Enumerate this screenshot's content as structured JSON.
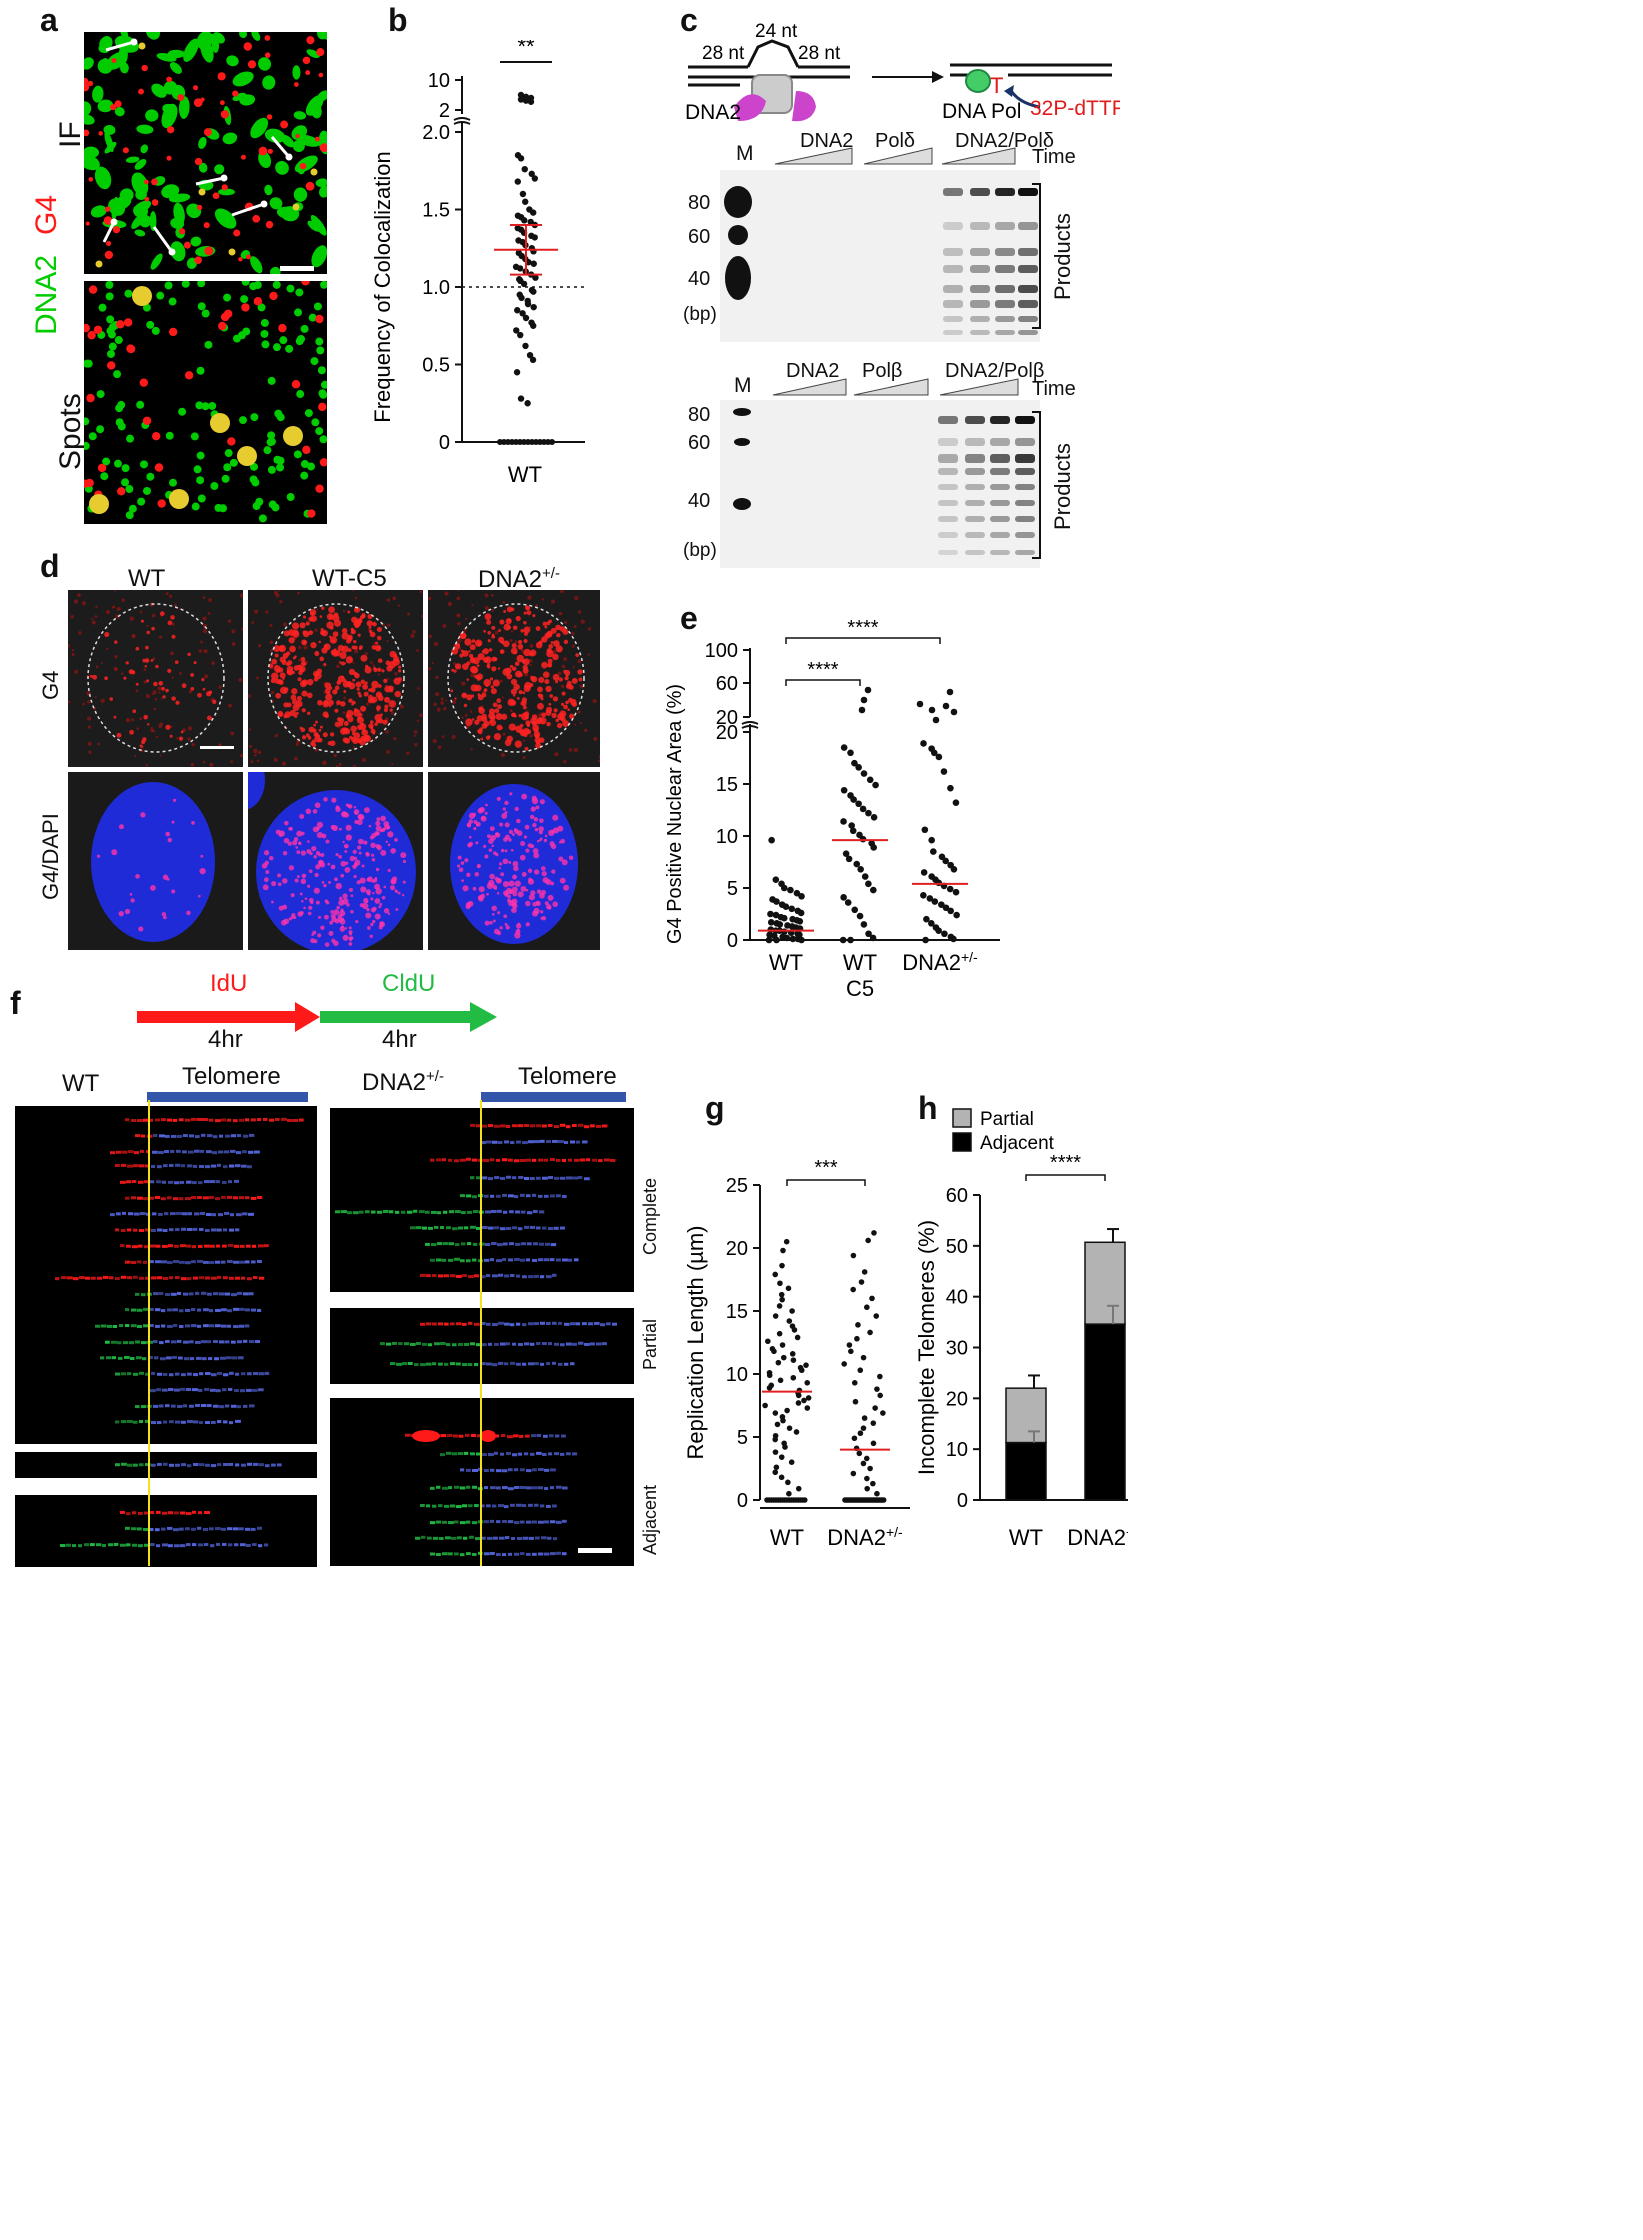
{
  "panels": {
    "a": {
      "label": "a",
      "row_top": "IF",
      "row_bottom": "Spots",
      "channel_green": "DNA2",
      "channel_red": "G4",
      "colors": {
        "green": "#00cc00",
        "red": "#ff1a1a",
        "yellow": "#e6cc2e"
      }
    },
    "b": {
      "label": "b"
    },
    "c": {
      "label": "c",
      "schematic": {
        "left_arm": "28 nt",
        "flap": "24 nt",
        "right_arm": "28 nt",
        "enzyme": "DNA2",
        "polymerase": "DNA Pol",
        "nucleotide_mark": "T",
        "radiolabel": "32P-dTTP"
      },
      "gel1": {
        "marker": "M",
        "lanes": [
          "DNA2",
          "Polδ",
          "DNA2/Polδ"
        ],
        "time": "Time",
        "sizes": [
          "80",
          "60",
          "40"
        ],
        "unit": "(bp)",
        "products": "Products"
      },
      "gel2": {
        "marker": "M",
        "lanes": [
          "DNA2",
          "Polβ",
          "DNA2/Polβ"
        ],
        "time": "Time",
        "sizes": [
          "80",
          "60",
          "40"
        ],
        "unit": "(bp)",
        "products": "Products"
      }
    },
    "d": {
      "label": "d",
      "columns": [
        "WT",
        "WT-C5",
        "DNA2"
      ],
      "column_sup": "+/-",
      "rows": [
        "G4",
        "G4/DAPI"
      ]
    },
    "e": {
      "label": "e"
    },
    "f": {
      "label": "f",
      "pulse1": {
        "name": "IdU",
        "duration": "4hr",
        "color": "#ff1a1a"
      },
      "pulse2": {
        "name": "CldU",
        "duration": "4hr",
        "color": "#22bb44"
      },
      "wt_title": "WT",
      "mut_title": "DNA2",
      "mut_sup": "+/-",
      "telomere": "Telomere",
      "categories": [
        "Complete",
        "Partial",
        "Adjacent"
      ]
    },
    "g": {
      "label": "g"
    },
    "h": {
      "label": "h"
    }
  },
  "chart_data": [
    {
      "id": "b",
      "type": "scatter",
      "ylabel": "Frequency of Colocalization",
      "yticks_lower": [
        "0",
        "0.5",
        "1.0",
        "1.5",
        "2.0"
      ],
      "yticks_upper": [
        "2",
        "10"
      ],
      "categories": [
        "WT"
      ],
      "mean": 1.24,
      "error": [
        1.08,
        1.4
      ],
      "reference_line": 1.0,
      "significance": "**",
      "zero_count": 14,
      "points_above_break": [
        6.0,
        5.5,
        5.2,
        4.8,
        4.5,
        4.2
      ],
      "points": [
        1.85,
        1.83,
        1.76,
        1.73,
        1.7,
        1.68,
        1.6,
        1.55,
        1.5,
        1.48,
        1.46,
        1.45,
        1.43,
        1.42,
        1.4,
        1.38,
        1.37,
        1.35,
        1.33,
        1.32,
        1.3,
        1.29,
        1.27,
        1.25,
        1.23,
        1.22,
        1.2,
        1.18,
        1.16,
        1.15,
        1.13,
        1.12,
        1.1,
        1.08,
        1.06,
        1.05,
        1.04,
        1.02,
        0.98,
        0.97,
        0.95,
        0.93,
        0.91,
        0.89,
        0.87,
        0.85,
        0.83,
        0.8,
        0.77,
        0.75,
        0.72,
        0.69,
        0.62,
        0.56,
        0.53,
        0.45,
        0.28,
        0.25
      ]
    },
    {
      "id": "e",
      "type": "scatter",
      "ylabel": "G4 Positive Nuclear Area (%)",
      "yticks_lower": [
        "0",
        "5",
        "10",
        "15",
        "20"
      ],
      "yticks_upper": [
        "20",
        "60",
        "100"
      ],
      "categories": [
        "WT",
        "WT",
        "DNA2"
      ],
      "category_sublabels": [
        "",
        "C5",
        "+/-"
      ],
      "significance": [
        "****",
        "****"
      ],
      "series": [
        {
          "name": "WT",
          "median": 0.9,
          "points": [
            9.6,
            5.8,
            5.4,
            5.0,
            4.8,
            4.5,
            4.2,
            3.9,
            3.7,
            3.4,
            3.2,
            3.0,
            2.8,
            2.6,
            2.5,
            2.4,
            2.2,
            2.1,
            2.0,
            1.9,
            1.8,
            1.7,
            1.6,
            1.5,
            1.4,
            1.3,
            1.2,
            1.1,
            1.0,
            0.9,
            0.9,
            0.8,
            0.7,
            0.6,
            0.5,
            0.5,
            0.4,
            0.3,
            0.2,
            0.1,
            0.1,
            0.0,
            0.0,
            0.0
          ]
        },
        {
          "name": "WT C5",
          "median": 9.6,
          "points": [
            18.5,
            18.0,
            17.0,
            16.6,
            16.0,
            15.4,
            14.9,
            14.4,
            13.9,
            13.5,
            13.1,
            12.6,
            12.2,
            11.8,
            11.4,
            11.0,
            10.5,
            10.1,
            9.7,
            9.3,
            8.9,
            8.3,
            7.8,
            7.3,
            6.8,
            6.1,
            5.4,
            4.8,
            4.1,
            3.6,
            2.9,
            2.3,
            1.5,
            0.6,
            0.2,
            0.0,
            0.0
          ]
        },
        {
          "name": "DNA2+/-",
          "median": 5.4,
          "points": [
            18.9,
            18.4,
            18.0,
            17.6,
            16.2,
            14.6,
            13.2,
            10.6,
            9.6,
            8.5,
            8.0,
            7.6,
            7.2,
            6.8,
            6.5,
            6.1,
            5.8,
            5.5,
            5.2,
            4.9,
            4.6,
            4.3,
            4.0,
            3.7,
            3.4,
            3.1,
            2.8,
            2.4,
            2.0,
            1.6,
            1.2,
            0.9,
            0.6,
            0.3,
            0.1,
            0.0
          ]
        }
      ]
    },
    {
      "id": "g",
      "type": "scatter",
      "ylabel": "Replication Length (µm)",
      "yticks": [
        "0",
        "5",
        "10",
        "15",
        "20",
        "25"
      ],
      "ylim": [
        0,
        25
      ],
      "categories": [
        "WT",
        "DNA2"
      ],
      "category_sup": [
        "",
        "+/-"
      ],
      "significance": "***",
      "series": [
        {
          "name": "WT",
          "median": 8.6,
          "zero_count": 18,
          "points": [
            20.5,
            19.8,
            18.6,
            17.9,
            17.2,
            16.8,
            16.3,
            15.9,
            15.4,
            15.0,
            14.6,
            14.2,
            13.8,
            13.5,
            13.2,
            12.9,
            12.6,
            12.3,
            12.0,
            11.8,
            11.6,
            11.3,
            11.1,
            10.9,
            10.7,
            10.5,
            10.3,
            10.1,
            9.9,
            9.7,
            9.5,
            9.3,
            9.1,
            8.9,
            8.7,
            8.5,
            8.3,
            8.1,
            7.9,
            7.7,
            7.5,
            7.3,
            7.1,
            6.9,
            6.6,
            6.3,
            6.0,
            5.7,
            5.4,
            5.1,
            4.8,
            4.5,
            4.2,
            3.8,
            3.4,
            3.0,
            2.6,
            2.2,
            1.8,
            1.4,
            0.9,
            0.5
          ]
        },
        {
          "name": "DNA2+/-",
          "median": 4.0,
          "zero_count": 30,
          "points": [
            21.2,
            20.6,
            19.4,
            18.1,
            17.3,
            16.7,
            16.0,
            15.3,
            14.6,
            13.9,
            13.3,
            12.8,
            12.3,
            11.8,
            11.3,
            10.8,
            10.3,
            9.8,
            9.3,
            8.8,
            8.3,
            7.8,
            7.3,
            6.9,
            6.5,
            6.1,
            5.7,
            5.3,
            4.9,
            4.5,
            4.1,
            3.7,
            3.3,
            2.9,
            2.5,
            2.1,
            1.7,
            1.3,
            0.9,
            0.5
          ]
        }
      ]
    },
    {
      "id": "h",
      "type": "bar",
      "stacked": true,
      "ylabel": "Incomplete Telomeres (%)",
      "yticks": [
        "0",
        "10",
        "20",
        "30",
        "40",
        "50",
        "60"
      ],
      "ylim": [
        0,
        60
      ],
      "categories": [
        "WT",
        "DNA2"
      ],
      "category_sup": [
        "",
        "+/-"
      ],
      "significance": "****",
      "legend_position": "top",
      "series": [
        {
          "name": "Adjacent",
          "color": "#000000",
          "values": [
            11.3,
            34.6
          ],
          "errors": [
            2.2,
            3.6
          ]
        },
        {
          "name": "Partial",
          "color": "#b3b3b3",
          "values": [
            10.7,
            16.1
          ],
          "errors": [
            2.5,
            2.6
          ]
        }
      ]
    }
  ]
}
